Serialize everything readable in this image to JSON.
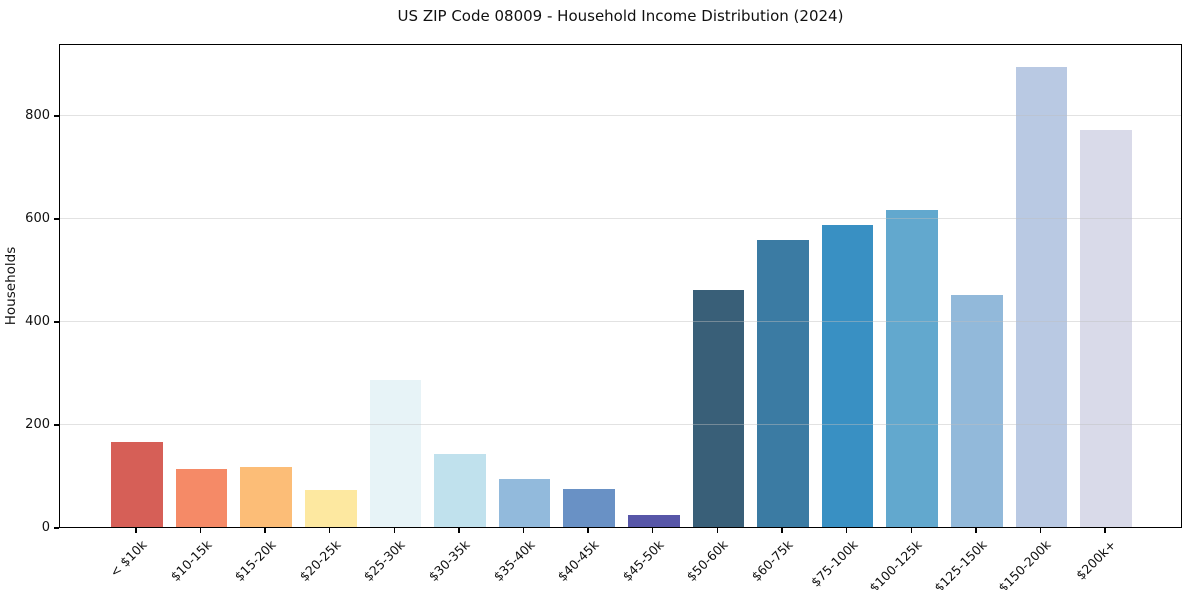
{
  "figure": {
    "title": "US ZIP Code 08009 - Household Income Distribution (2024)"
  },
  "chart_data": {
    "type": "bar",
    "title": "US ZIP Code 08009 - Household Income Distribution (2024)",
    "xlabel": "",
    "ylabel": "Households",
    "categories": [
      "< $10k",
      "$10-15k",
      "$15-20k",
      "$20-25k",
      "$25-30k",
      "$30-35k",
      "$35-40k",
      "$40-45k",
      "$45-50k",
      "$50-60k",
      "$60-75k",
      "$75-100k",
      "$100-125k",
      "$125-150k",
      "$150-200k",
      "$200k+"
    ],
    "values": [
      165,
      113,
      117,
      72,
      285,
      142,
      93,
      74,
      24,
      460,
      558,
      586,
      615,
      450,
      893,
      772
    ],
    "bar_colors": [
      "#d65f57",
      "#f58a67",
      "#fcbd77",
      "#fde8a0",
      "#e7f3f7",
      "#c0e1ed",
      "#92badc",
      "#6991c5",
      "#5756a8",
      "#395f78",
      "#3b7ba3",
      "#3990c3",
      "#62a8ce",
      "#92b9da",
      "#b9c9e3",
      "#d9dae9"
    ],
    "yticks": [
      0,
      200,
      400,
      600,
      800
    ],
    "ylim": [
      0,
      940
    ],
    "grid": "horizontal",
    "grid_color": "#e6e6e6",
    "spine_color": "#000000",
    "background_color": "#ffffff",
    "legend": "none"
  }
}
